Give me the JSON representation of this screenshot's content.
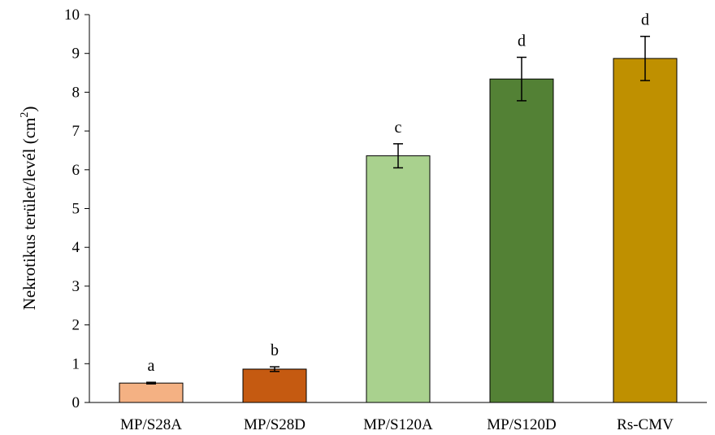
{
  "chart_data": {
    "type": "bar",
    "title": "",
    "xlabel": "",
    "ylabel": "Nekrotikus terület/levél (cm",
    "ylabel_superscript": "2",
    "ylabel_suffix": ")",
    "ylim": [
      0,
      10
    ],
    "yticks": [
      "0",
      "1",
      "2",
      "3",
      "4",
      "5",
      "6",
      "7",
      "8",
      "9",
      "10"
    ],
    "grid": false,
    "legend": "none",
    "categories": [
      "MP/S28A",
      "MP/S28D",
      "MP/S120A",
      "MP/S120D",
      "Rs-CMV"
    ],
    "series": [
      {
        "values": [
          0.5,
          0.86,
          6.36,
          8.34,
          8.87
        ],
        "errors": [
          0.02,
          0.06,
          0.31,
          0.56,
          0.57
        ],
        "significance": [
          "a",
          "b",
          "c",
          "d",
          "d"
        ],
        "colors": [
          "#f4b183",
          "#c55a11",
          "#a9d18e",
          "#538135",
          "#bf9000"
        ]
      }
    ]
  }
}
